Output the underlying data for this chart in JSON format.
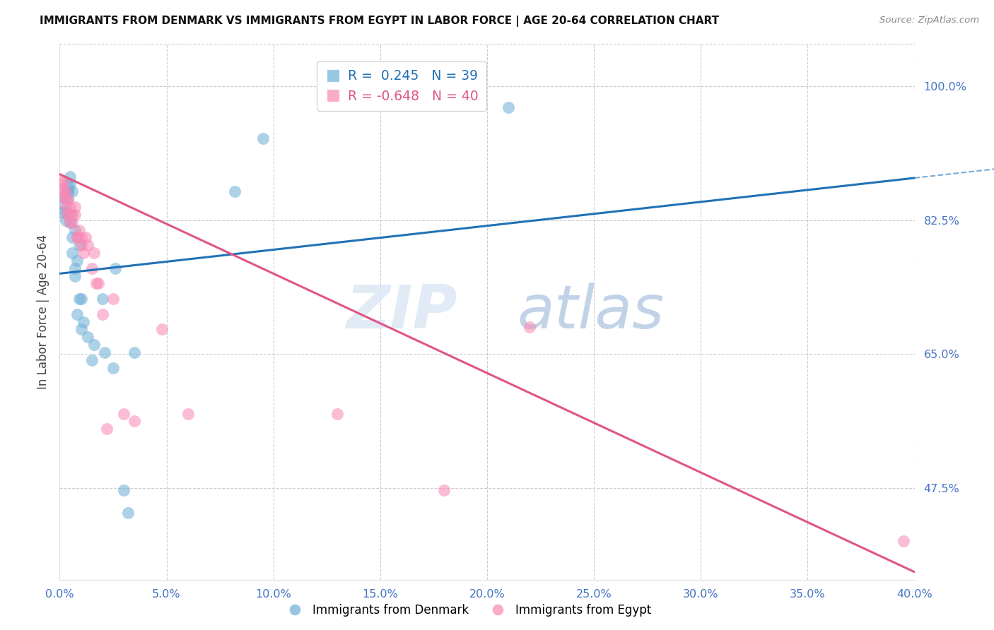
{
  "title": "IMMIGRANTS FROM DENMARK VS IMMIGRANTS FROM EGYPT IN LABOR FORCE | AGE 20-64 CORRELATION CHART",
  "source": "Source: ZipAtlas.com",
  "ylabel": "In Labor Force | Age 20-64",
  "r_denmark": 0.245,
  "n_denmark": 39,
  "r_egypt": -0.648,
  "n_egypt": 40,
  "legend_label_denmark": "Immigrants from Denmark",
  "legend_label_egypt": "Immigrants from Egypt",
  "color_denmark": "#6baed6",
  "color_egypt": "#f888b4",
  "color_denmark_line": "#2171b5",
  "color_egypt_line": "#e05585",
  "color_axis_labels": "#4472c4",
  "xlim": [
    0.0,
    0.4
  ],
  "ylim": [
    0.355,
    1.055
  ],
  "right_yticks": [
    1.0,
    0.825,
    0.65,
    0.475
  ],
  "right_ytick_labels": [
    "100.0%",
    "82.5%",
    "65.0%",
    "47.5%"
  ],
  "denmark_x": [
    0.001,
    0.002,
    0.002,
    0.003,
    0.003,
    0.004,
    0.004,
    0.004,
    0.004,
    0.005,
    0.005,
    0.005,
    0.005,
    0.006,
    0.006,
    0.006,
    0.007,
    0.007,
    0.007,
    0.008,
    0.008,
    0.009,
    0.009,
    0.01,
    0.01,
    0.011,
    0.013,
    0.015,
    0.016,
    0.02,
    0.021,
    0.025,
    0.026,
    0.03,
    0.032,
    0.035,
    0.082,
    0.095,
    0.21
  ],
  "denmark_y": [
    0.835,
    0.845,
    0.855,
    0.825,
    0.835,
    0.862,
    0.872,
    0.862,
    0.852,
    0.872,
    0.882,
    0.832,
    0.822,
    0.862,
    0.782,
    0.802,
    0.812,
    0.762,
    0.752,
    0.772,
    0.702,
    0.792,
    0.722,
    0.722,
    0.682,
    0.692,
    0.672,
    0.642,
    0.662,
    0.722,
    0.652,
    0.632,
    0.762,
    0.472,
    0.442,
    0.652,
    0.862,
    0.932,
    0.972
  ],
  "egypt_x": [
    0.001,
    0.001,
    0.002,
    0.002,
    0.002,
    0.003,
    0.003,
    0.003,
    0.004,
    0.004,
    0.004,
    0.005,
    0.005,
    0.006,
    0.006,
    0.007,
    0.007,
    0.008,
    0.008,
    0.009,
    0.01,
    0.01,
    0.011,
    0.012,
    0.013,
    0.015,
    0.016,
    0.017,
    0.018,
    0.02,
    0.022,
    0.025,
    0.03,
    0.035,
    0.048,
    0.06,
    0.13,
    0.18,
    0.22,
    0.395
  ],
  "egypt_y": [
    0.865,
    0.875,
    0.855,
    0.865,
    0.875,
    0.852,
    0.842,
    0.862,
    0.832,
    0.852,
    0.832,
    0.822,
    0.842,
    0.832,
    0.822,
    0.832,
    0.842,
    0.802,
    0.802,
    0.812,
    0.802,
    0.792,
    0.782,
    0.802,
    0.792,
    0.762,
    0.782,
    0.742,
    0.742,
    0.702,
    0.552,
    0.722,
    0.572,
    0.562,
    0.682,
    0.572,
    0.572,
    0.472,
    0.685,
    0.405
  ],
  "dk_line_x0": 0.0,
  "dk_line_x1": 0.4,
  "dk_line_y0": 0.755,
  "dk_line_y1": 0.88,
  "eg_line_x0": 0.0,
  "eg_line_x1": 0.4,
  "eg_line_y0": 0.885,
  "eg_line_y1": 0.365,
  "watermark_zip": "ZIP",
  "watermark_atlas": "atlas",
  "background_color": "#ffffff",
  "grid_color": "#cccccc"
}
